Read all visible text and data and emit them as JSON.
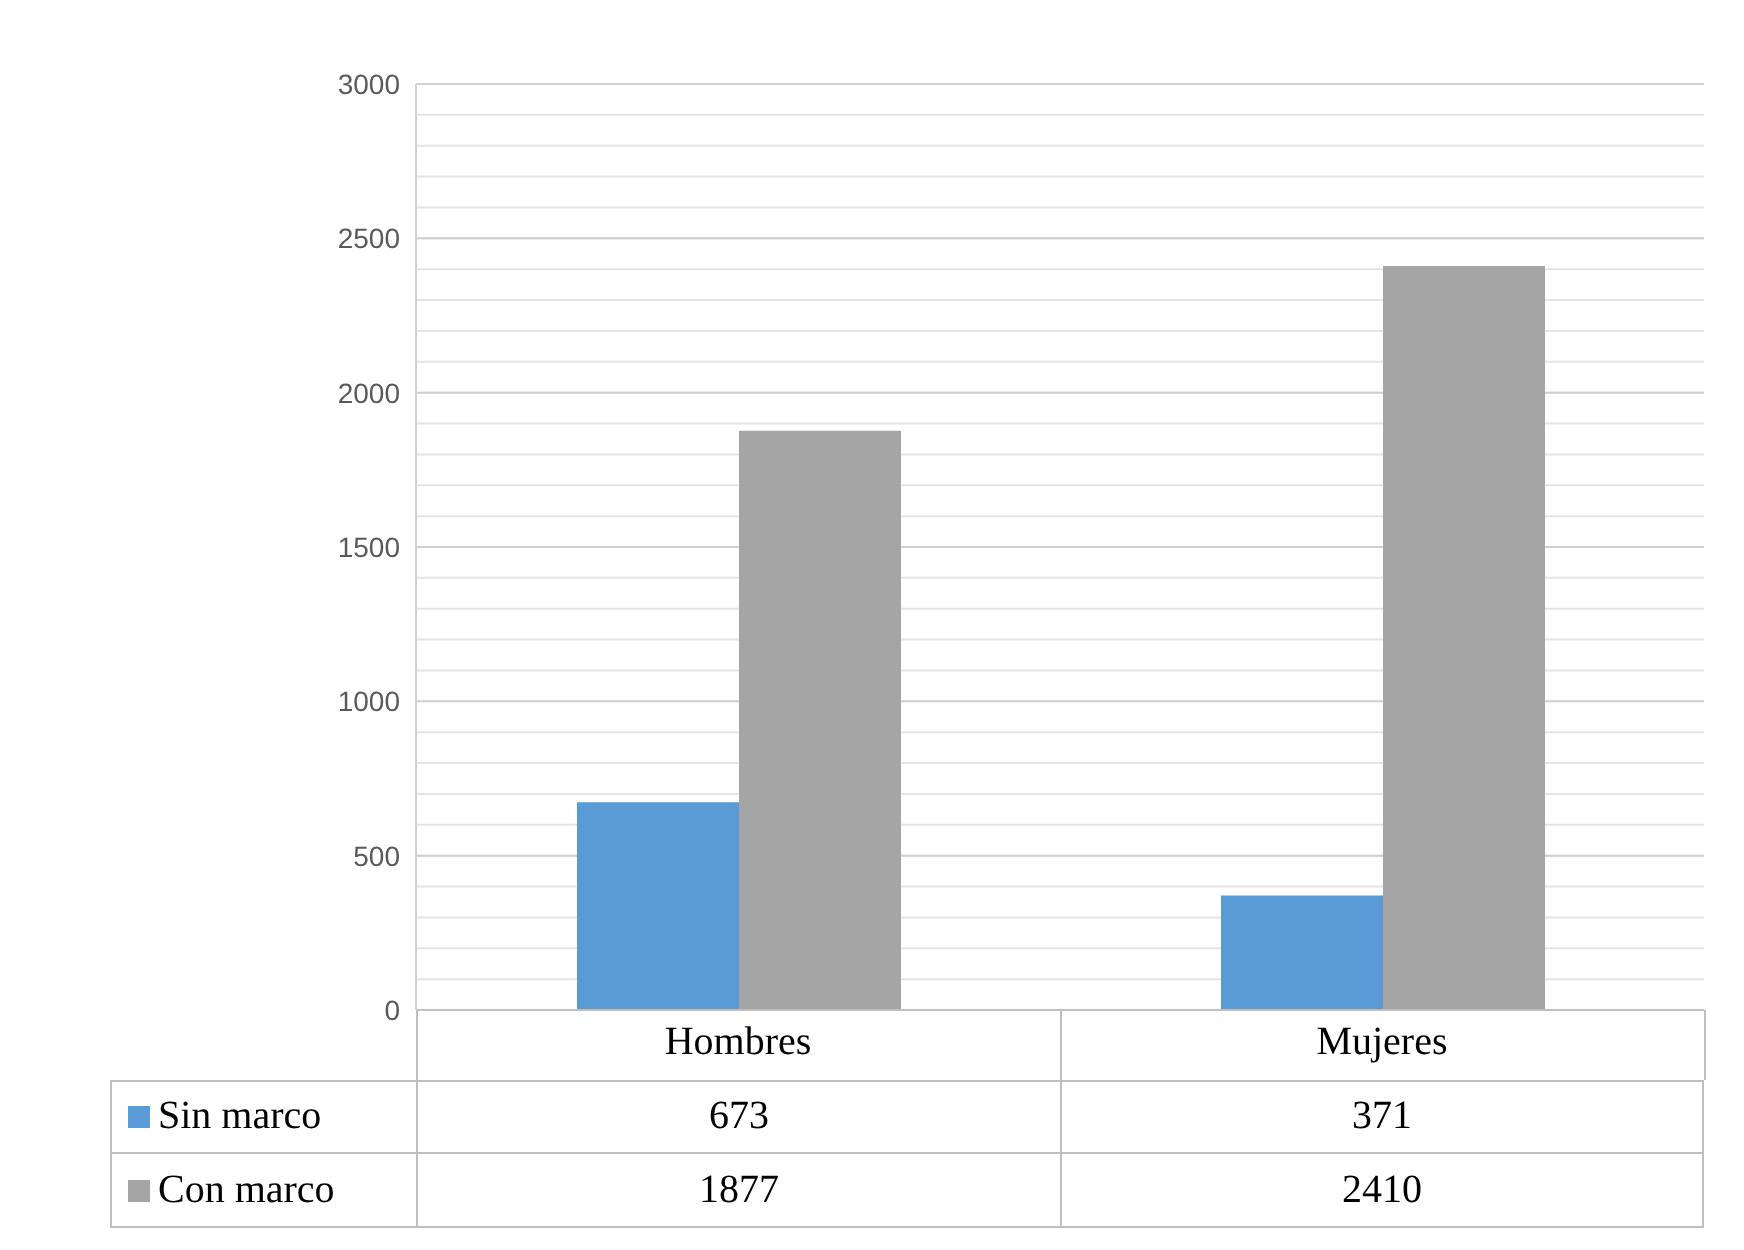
{
  "chart_data": {
    "type": "bar",
    "categories": [
      "Hombres",
      "Mujeres"
    ],
    "series": [
      {
        "name": "Sin marco",
        "color": "#5b9bd5",
        "values": [
          673,
          371
        ]
      },
      {
        "name": "Con marco",
        "color": "#a5a5a5",
        "values": [
          1877,
          2410
        ]
      }
    ],
    "ylim": [
      0,
      3000
    ],
    "yticks": [
      0,
      {
        "value": 100,
        "label": null
      },
      {
        "value": 200,
        "label": null
      },
      {
        "value": 300,
        "label": null
      },
      {
        "value": 400,
        "label": null
      },
      500,
      {
        "value": 600,
        "label": null
      },
      {
        "value": 700,
        "label": null
      },
      {
        "value": 800,
        "label": null
      },
      {
        "value": 900,
        "label": null
      },
      1000,
      {
        "value": 1100,
        "label": null
      },
      {
        "value": 1200,
        "label": null
      },
      {
        "value": 1300,
        "label": null
      },
      {
        "value": 1400,
        "label": null
      },
      1500,
      {
        "value": 1600,
        "label": null
      },
      {
        "value": 1700,
        "label": null
      },
      {
        "value": 1800,
        "label": null
      },
      {
        "value": 1900,
        "label": null
      },
      2000,
      {
        "value": 2100,
        "label": null
      },
      {
        "value": 2200,
        "label": null
      },
      {
        "value": 2300,
        "label": null
      },
      {
        "value": 2400,
        "label": null
      },
      2500,
      {
        "value": 2600,
        "label": null
      },
      {
        "value": 2700,
        "label": null
      },
      {
        "value": 2800,
        "label": null
      },
      {
        "value": 2900,
        "label": null
      },
      3000
    ],
    "grid": "y",
    "legend": "bottom",
    "data_labels": true
  }
}
